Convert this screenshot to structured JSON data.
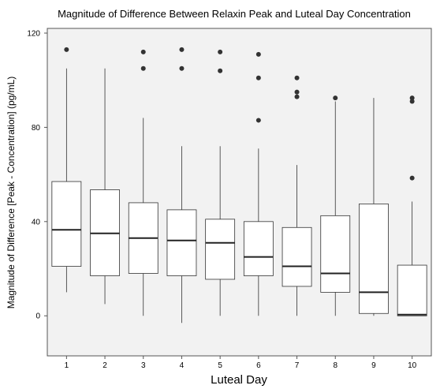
{
  "chart_data": {
    "type": "boxplot",
    "title": "Magnitude of Difference Between Relaxin Peak and Luteal Day Concentration",
    "xlabel": "Luteal Day",
    "ylabel": "Magnitude of Difference [Peak - Concentration] (pg/mL)",
    "ylim": [
      -17,
      122
    ],
    "yticks": [
      0,
      40,
      80,
      120
    ],
    "grid": false,
    "background": "#f2f2f2",
    "box_color": "#ffffff",
    "line_color": "#333333",
    "outlier_color": "#333333",
    "categories": [
      "1",
      "2",
      "3",
      "4",
      "5",
      "6",
      "7",
      "8",
      "9",
      "10"
    ],
    "boxes": [
      {
        "category": "1",
        "whisker_low": 10,
        "q1": 21,
        "median": 36.5,
        "q3": 57,
        "whisker_high": 105,
        "outliers": [
          113
        ]
      },
      {
        "category": "2",
        "whisker_low": 5,
        "q1": 17,
        "median": 35,
        "q3": 53.5,
        "whisker_high": 105,
        "outliers": []
      },
      {
        "category": "3",
        "whisker_low": 0,
        "q1": 18,
        "median": 33,
        "q3": 48,
        "whisker_high": 84,
        "outliers": [
          105,
          112
        ]
      },
      {
        "category": "4",
        "whisker_low": -3,
        "q1": 17,
        "median": 32,
        "q3": 45,
        "whisker_high": 72,
        "outliers": [
          105,
          113
        ]
      },
      {
        "category": "5",
        "whisker_low": 0,
        "q1": 15.5,
        "median": 31,
        "q3": 41,
        "whisker_high": 72,
        "outliers": [
          104,
          112
        ]
      },
      {
        "category": "6",
        "whisker_low": 0,
        "q1": 17,
        "median": 25,
        "q3": 40,
        "whisker_high": 71,
        "outliers": [
          83,
          101,
          111
        ]
      },
      {
        "category": "7",
        "whisker_low": 0,
        "q1": 12.5,
        "median": 21,
        "q3": 37.5,
        "whisker_high": 64,
        "outliers": [
          93,
          95,
          101
        ]
      },
      {
        "category": "8",
        "whisker_low": 0,
        "q1": 10,
        "median": 18,
        "q3": 42.5,
        "whisker_high": 91,
        "outliers": [
          92.5
        ]
      },
      {
        "category": "9",
        "whisker_low": 0,
        "q1": 1,
        "median": 10,
        "q3": 47.5,
        "whisker_high": 92.5,
        "outliers": []
      },
      {
        "category": "10",
        "whisker_low": 0,
        "q1": 0,
        "median": 0.5,
        "q3": 21.5,
        "whisker_high": 48.5,
        "outliers": [
          58.5,
          91,
          92.5
        ]
      }
    ]
  }
}
